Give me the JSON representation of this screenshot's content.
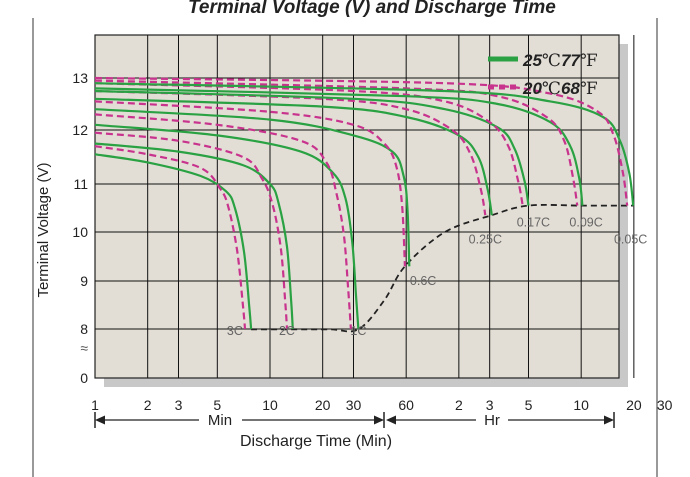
{
  "chart_data": {
    "type": "line",
    "title": "Terminal Voltage (V) and Discharge Time",
    "xlabel": "Discharge Time (Min)",
    "ylabel": "Terminal Voltage (V)",
    "x_scale": "log",
    "x_unit_labels": {
      "min": "Min",
      "hr": "Hr"
    },
    "x_ticks_min": [
      "1",
      "2",
      "3",
      "5",
      "10",
      "20",
      "30",
      "60"
    ],
    "x_ticks_hr": [
      "2",
      "3",
      "5",
      "10",
      "20",
      "30"
    ],
    "y_ticks": [
      "0",
      "8",
      "9",
      "10",
      "11",
      "12",
      "13"
    ],
    "axis_break_symbol": "≈",
    "legend": {
      "placement": "top-right",
      "entries": [
        {
          "style": "solid",
          "color": "#2aa243",
          "temp_c": "25",
          "unit_c": "℃",
          "temp_f": "77",
          "unit_f": "℉"
        },
        {
          "style": "dashed",
          "color": "#c8338e",
          "temp_c": "20",
          "unit_c": "℃",
          "temp_f": "68",
          "unit_f": "℉"
        }
      ]
    },
    "series": [
      {
        "rate": "3C",
        "temp": "25C",
        "x": [
          1,
          2,
          4,
          5.6,
          6.3,
          7.1,
          7.6,
          7.8
        ],
        "y": [
          11.55,
          11.4,
          11.15,
          10.85,
          10.5,
          9.6,
          8.5,
          8.0
        ]
      },
      {
        "rate": "3C",
        "temp": "20C",
        "x": [
          1,
          2,
          4,
          5.2,
          5.8,
          6.5,
          7.0,
          7.2
        ],
        "y": [
          11.7,
          11.55,
          11.3,
          10.9,
          10.5,
          9.6,
          8.5,
          8.0
        ]
      },
      {
        "rate": "2C",
        "temp": "25C",
        "x": [
          1,
          3,
          7,
          10,
          11.2,
          12.5,
          13.2,
          13.5
        ],
        "y": [
          11.75,
          11.6,
          11.35,
          11.0,
          10.6,
          9.7,
          8.6,
          8.0
        ]
      },
      {
        "rate": "2C",
        "temp": "20C",
        "x": [
          1,
          3,
          7,
          9,
          10.3,
          11.5,
          12.2,
          12.5
        ],
        "y": [
          11.95,
          11.8,
          11.5,
          11.1,
          10.6,
          9.7,
          8.6,
          8.0
        ]
      },
      {
        "rate": "1C",
        "temp": "25C",
        "x": [
          1,
          5,
          15,
          23,
          27,
          29.5,
          31,
          32
        ],
        "y": [
          12.1,
          11.9,
          11.6,
          11.2,
          10.7,
          9.8,
          8.7,
          7.95
        ]
      },
      {
        "rate": "1C",
        "temp": "20C",
        "x": [
          1,
          5,
          15,
          21,
          24,
          26.5,
          28,
          29
        ],
        "y": [
          12.3,
          12.1,
          11.8,
          11.4,
          10.8,
          9.9,
          8.8,
          8.0
        ]
      },
      {
        "rate": "0.6C",
        "temp": "25C",
        "x": [
          1,
          10,
          30,
          50,
          58,
          61,
          62.5
        ],
        "y": [
          12.4,
          12.2,
          11.9,
          11.6,
          11.15,
          10.5,
          9.3
        ]
      },
      {
        "rate": "0.6C",
        "temp": "20C",
        "x": [
          1,
          10,
          30,
          45,
          53,
          57,
          59
        ],
        "y": [
          12.55,
          12.35,
          12.1,
          11.75,
          11.3,
          10.5,
          9.3
        ]
      },
      {
        "rate": "0.25C",
        "temp": "25C",
        "x": [
          1,
          20,
          60,
          120,
          155,
          175,
          185
        ],
        "y": [
          12.6,
          12.45,
          12.25,
          11.9,
          11.5,
          10.9,
          10.35
        ]
      },
      {
        "rate": "0.25C",
        "temp": "20C",
        "x": [
          1,
          20,
          60,
          110,
          140,
          160,
          170
        ],
        "y": [
          12.75,
          12.6,
          12.4,
          12.0,
          11.55,
          10.9,
          10.35
        ]
      },
      {
        "rate": "0.17C",
        "temp": "25C",
        "x": [
          1,
          30,
          100,
          200,
          250,
          285,
          300
        ],
        "y": [
          12.75,
          12.6,
          12.4,
          12.05,
          11.65,
          11.05,
          10.55
        ]
      },
      {
        "rate": "0.17C",
        "temp": "20C",
        "x": [
          1,
          30,
          100,
          180,
          230,
          262,
          278
        ],
        "y": [
          12.9,
          12.75,
          12.55,
          12.15,
          11.7,
          11.05,
          10.55
        ]
      },
      {
        "rate": "0.09C",
        "temp": "25C",
        "x": [
          1,
          60,
          200,
          400,
          520,
          585,
          610
        ],
        "y": [
          12.8,
          12.65,
          12.5,
          12.15,
          11.7,
          11.1,
          10.55
        ]
      },
      {
        "rate": "0.09C",
        "temp": "20C",
        "x": [
          1,
          60,
          200,
          380,
          480,
          540,
          570
        ],
        "y": [
          12.95,
          12.8,
          12.65,
          12.25,
          11.8,
          11.1,
          10.55
        ]
      },
      {
        "rate": "0.05C",
        "temp": "25C",
        "x": [
          1,
          100,
          400,
          800,
          1000,
          1130,
          1190
        ],
        "y": [
          12.9,
          12.75,
          12.55,
          12.25,
          11.8,
          11.2,
          10.55
        ]
      },
      {
        "rate": "0.05C",
        "temp": "20C",
        "x": [
          1,
          100,
          400,
          750,
          920,
          1040,
          1100
        ],
        "y": [
          13.0,
          12.9,
          12.7,
          12.35,
          11.9,
          11.2,
          10.55
        ]
      }
    ],
    "end_voltage_line": {
      "x": [
        7.8,
        13.5,
        22,
        32,
        45,
        59,
        100,
        185,
        300,
        610,
        1190
      ],
      "y": [
        7.95,
        7.95,
        7.95,
        7.95,
        8.6,
        9.3,
        10.0,
        10.35,
        10.55,
        10.55,
        10.55
      ]
    },
    "rate_labels": [
      {
        "text": "3C",
        "x": 6.3,
        "y": 7.7
      },
      {
        "text": "2C",
        "x": 12.5,
        "y": 7.7
      },
      {
        "text": "1C",
        "x": 32,
        "y": 7.7
      },
      {
        "text": "0.6C",
        "x": 75,
        "y": 9.0
      },
      {
        "text": "0.25C",
        "x": 170,
        "y": 9.85
      },
      {
        "text": "0.17C",
        "x": 320,
        "y": 10.2
      },
      {
        "text": "0.09C",
        "x": 640,
        "y": 10.2
      },
      {
        "text": "0.05C",
        "x": 1150,
        "y": 9.85
      }
    ]
  }
}
